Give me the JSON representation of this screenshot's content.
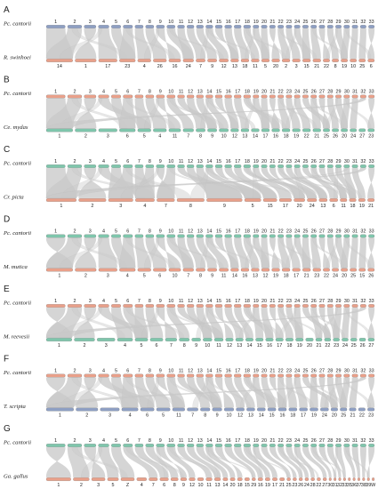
{
  "panels": [
    {
      "label": "A",
      "top_species": "Pc. cantorii",
      "bottom_species": "R. swinhoei",
      "top_color": "#8e9fc3",
      "bottom_color": "#e9a08a",
      "top_labels": [
        "1",
        "2",
        "3",
        "4",
        "5",
        "6",
        "7",
        "8",
        "9",
        "10",
        "11",
        "12",
        "13",
        "14",
        "15",
        "16",
        "17",
        "18",
        "19",
        "20",
        "21",
        "22",
        "23",
        "24",
        "25",
        "26",
        "27",
        "28",
        "29",
        "30",
        "31",
        "32",
        "33"
      ],
      "bottom_labels": [
        "14",
        "1",
        "17",
        "23",
        "4",
        "26",
        "16",
        "24",
        "7",
        "9",
        "12",
        "13",
        "18",
        "11",
        "5",
        "20",
        "2",
        "3",
        "15",
        "21",
        "22",
        "8",
        "19",
        "10",
        "25",
        "6"
      ],
      "top_weights": [
        16,
        12,
        10,
        9,
        8,
        8,
        7,
        7,
        7,
        7,
        6,
        6,
        6,
        6,
        6,
        6,
        6,
        6,
        5,
        5,
        5,
        5,
        5,
        5,
        5,
        5,
        5,
        5,
        5,
        5,
        5,
        5,
        5
      ],
      "bottom_weights": [
        20,
        16,
        14,
        12,
        10,
        10,
        9,
        8,
        7,
        7,
        7,
        6,
        6,
        6,
        6,
        6,
        6,
        6,
        6,
        6,
        5,
        5,
        5,
        5,
        5,
        5
      ]
    },
    {
      "label": "B",
      "top_species": "Pc. cantorii",
      "bottom_species": "Ce. mydas",
      "top_color": "#e9a08a",
      "bottom_color": "#7fc6ac",
      "top_labels": [
        "1",
        "2",
        "3",
        "4",
        "5",
        "6",
        "7",
        "8",
        "9",
        "10",
        "11",
        "12",
        "13",
        "14",
        "15",
        "16",
        "17",
        "18",
        "19",
        "20",
        "21",
        "22",
        "23",
        "24",
        "25",
        "26",
        "27",
        "28",
        "29",
        "30",
        "31",
        "32",
        "33"
      ],
      "bottom_labels": [
        "1",
        "2",
        "3",
        "6",
        "5",
        "4",
        "11",
        "7",
        "8",
        "9",
        "10",
        "12",
        "13",
        "14",
        "17",
        "16",
        "18",
        "19",
        "22",
        "21",
        "25",
        "26",
        "20",
        "24",
        "27",
        "23"
      ],
      "top_weights": [
        16,
        12,
        10,
        9,
        8,
        8,
        7,
        7,
        7,
        7,
        6,
        6,
        6,
        6,
        6,
        6,
        6,
        6,
        5,
        5,
        5,
        5,
        5,
        5,
        5,
        5,
        5,
        5,
        5,
        5,
        5,
        5,
        5
      ],
      "bottom_weights": [
        20,
        16,
        14,
        12,
        10,
        10,
        9,
        8,
        7,
        7,
        7,
        6,
        6,
        6,
        6,
        6,
        6,
        6,
        6,
        6,
        5,
        5,
        5,
        5,
        5,
        5
      ]
    },
    {
      "label": "C",
      "top_species": "Pc. cantorii",
      "bottom_species": "Cr. picta",
      "top_color": "#7fc6ac",
      "bottom_color": "#e9a08a",
      "top_labels": [
        "1",
        "2",
        "3",
        "4",
        "5",
        "6",
        "7",
        "8",
        "9",
        "10",
        "11",
        "12",
        "13",
        "14",
        "15",
        "16",
        "17",
        "18",
        "19",
        "20",
        "21",
        "22",
        "23",
        "24",
        "25",
        "26",
        "27",
        "28",
        "29",
        "30",
        "31",
        "32",
        "33"
      ],
      "bottom_labels": [
        "1",
        "2",
        "3",
        "4",
        "7",
        "8",
        "9",
        "5",
        "15",
        "17",
        "20",
        "24",
        "13",
        "6",
        "11",
        "18",
        "19",
        "21"
      ],
      "top_weights": [
        16,
        12,
        10,
        9,
        8,
        8,
        7,
        7,
        7,
        7,
        6,
        6,
        6,
        6,
        6,
        6,
        6,
        6,
        5,
        5,
        5,
        5,
        5,
        5,
        5,
        5,
        5,
        5,
        5,
        5,
        5,
        5,
        5
      ],
      "bottom_weights": [
        22,
        20,
        18,
        14,
        13,
        20,
        26,
        12,
        10,
        9,
        8,
        7,
        6,
        6,
        5,
        5,
        5,
        5
      ]
    },
    {
      "label": "D",
      "top_species": "Pc. cantorii",
      "bottom_species": "M. mutica",
      "top_color": "#7fc6ac",
      "bottom_color": "#e9a08a",
      "top_labels": [
        "1",
        "2",
        "3",
        "4",
        "5",
        "6",
        "7",
        "8",
        "9",
        "10",
        "11",
        "12",
        "13",
        "14",
        "15",
        "16",
        "17",
        "18",
        "19",
        "20",
        "21",
        "22",
        "23",
        "24",
        "25",
        "26",
        "27",
        "28",
        "29",
        "30",
        "31",
        "32",
        "33"
      ],
      "bottom_labels": [
        "1",
        "2",
        "3",
        "4",
        "5",
        "6",
        "10",
        "7",
        "8",
        "9",
        "11",
        "14",
        "16",
        "13",
        "12",
        "19",
        "18",
        "17",
        "21",
        "23",
        "22",
        "24",
        "20",
        "25",
        "15",
        "26"
      ],
      "top_weights": [
        16,
        12,
        10,
        9,
        8,
        8,
        7,
        7,
        7,
        7,
        6,
        6,
        6,
        6,
        6,
        6,
        6,
        6,
        5,
        5,
        5,
        5,
        5,
        5,
        5,
        5,
        5,
        5,
        5,
        5,
        5,
        5,
        5
      ],
      "bottom_weights": [
        20,
        16,
        14,
        12,
        10,
        10,
        9,
        8,
        7,
        7,
        7,
        6,
        6,
        6,
        6,
        6,
        6,
        6,
        6,
        6,
        5,
        5,
        5,
        5,
        5,
        5
      ]
    },
    {
      "label": "E",
      "top_species": "Pc. cantorii",
      "bottom_species": "M. reevesii",
      "top_color": "#e9a08a",
      "bottom_color": "#7fc6ac",
      "top_labels": [
        "1",
        "2",
        "3",
        "4",
        "5",
        "6",
        "7",
        "8",
        "9",
        "10",
        "11",
        "12",
        "13",
        "14",
        "15",
        "16",
        "17",
        "18",
        "19",
        "20",
        "21",
        "22",
        "23",
        "24",
        "25",
        "26",
        "27",
        "28",
        "29",
        "30",
        "31",
        "32",
        "33"
      ],
      "bottom_labels": [
        "1",
        "2",
        "3",
        "4",
        "5",
        "6",
        "7",
        "8",
        "9",
        "10",
        "11",
        "12",
        "13",
        "14",
        "15",
        "16",
        "17",
        "18",
        "19",
        "20",
        "21",
        "22",
        "23",
        "24",
        "25",
        "26",
        "27"
      ],
      "top_weights": [
        16,
        12,
        10,
        9,
        8,
        8,
        7,
        7,
        7,
        7,
        6,
        6,
        6,
        6,
        6,
        6,
        6,
        6,
        5,
        5,
        5,
        5,
        5,
        5,
        5,
        5,
        5,
        5,
        5,
        5,
        5,
        5,
        5
      ],
      "bottom_weights": [
        20,
        16,
        14,
        12,
        10,
        10,
        9,
        8,
        7,
        7,
        7,
        6,
        6,
        6,
        6,
        6,
        6,
        6,
        6,
        6,
        5,
        5,
        5,
        5,
        5,
        5,
        5
      ]
    },
    {
      "label": "F",
      "top_species": "Pc. cantorii",
      "bottom_species": "T. scripta",
      "top_color": "#e9a08a",
      "bottom_color": "#8e9fc3",
      "top_labels": [
        "1",
        "2",
        "3",
        "4",
        "5",
        "6",
        "7",
        "8",
        "9",
        "10",
        "11",
        "12",
        "13",
        "14",
        "15",
        "16",
        "17",
        "18",
        "19",
        "20",
        "21",
        "22",
        "23",
        "24",
        "25",
        "26",
        "27",
        "28",
        "29",
        "30",
        "31",
        "32",
        "33"
      ],
      "bottom_labels": [
        "1",
        "2",
        "3",
        "4",
        "6",
        "5",
        "11",
        "7",
        "8",
        "9",
        "10",
        "12",
        "13",
        "14",
        "15",
        "16",
        "18",
        "17",
        "19",
        "24",
        "20",
        "25",
        "21",
        "22",
        "23"
      ],
      "top_weights": [
        16,
        12,
        10,
        9,
        8,
        8,
        7,
        7,
        7,
        7,
        6,
        6,
        6,
        6,
        6,
        6,
        6,
        6,
        5,
        5,
        5,
        5,
        5,
        5,
        5,
        5,
        5,
        5,
        5,
        5,
        5,
        5,
        5
      ],
      "bottom_weights": [
        20,
        16,
        14,
        12,
        10,
        10,
        9,
        8,
        7,
        7,
        7,
        6,
        6,
        6,
        6,
        6,
        6,
        6,
        6,
        6,
        5,
        5,
        5,
        5,
        5
      ]
    },
    {
      "label": "G",
      "top_species": "Pc. cantorii",
      "bottom_species": "Ga. gallus",
      "top_color": "#7fc6ac",
      "bottom_color": "#e9a08a",
      "top_labels": [
        "1",
        "2",
        "3",
        "4",
        "5",
        "6",
        "7",
        "8",
        "9",
        "10",
        "11",
        "12",
        "13",
        "14",
        "15",
        "16",
        "17",
        "18",
        "19",
        "20",
        "21",
        "22",
        "23",
        "24",
        "25",
        "26",
        "27",
        "28",
        "29",
        "30",
        "31",
        "32",
        "33"
      ],
      "bottom_labels": [
        "1",
        "2",
        "3",
        "5",
        "Z",
        "4",
        "7",
        "6",
        "8",
        "9",
        "12",
        "10",
        "11",
        "13",
        "14",
        "20",
        "18",
        "15",
        "29",
        "16",
        "19",
        "17",
        "21",
        "25",
        "23",
        "26",
        "24",
        "28",
        "22",
        "27",
        "30",
        "31",
        "32",
        "33",
        "35",
        "36",
        "37",
        "38",
        "39",
        "W"
      ],
      "top_weights": [
        16,
        12,
        10,
        9,
        8,
        8,
        7,
        7,
        7,
        7,
        6,
        6,
        6,
        6,
        6,
        6,
        6,
        6,
        5,
        5,
        5,
        5,
        5,
        5,
        5,
        5,
        5,
        5,
        5,
        5,
        5,
        5,
        5
      ],
      "bottom_weights": [
        20,
        13,
        11,
        9,
        11,
        8,
        7,
        7,
        6,
        5,
        5,
        5,
        5,
        5,
        4,
        4,
        4,
        4,
        3,
        4,
        4,
        4,
        4,
        3,
        3,
        3,
        3,
        3,
        3,
        3,
        2,
        2,
        2,
        2,
        2,
        2,
        2,
        2,
        2,
        2
      ]
    }
  ]
}
